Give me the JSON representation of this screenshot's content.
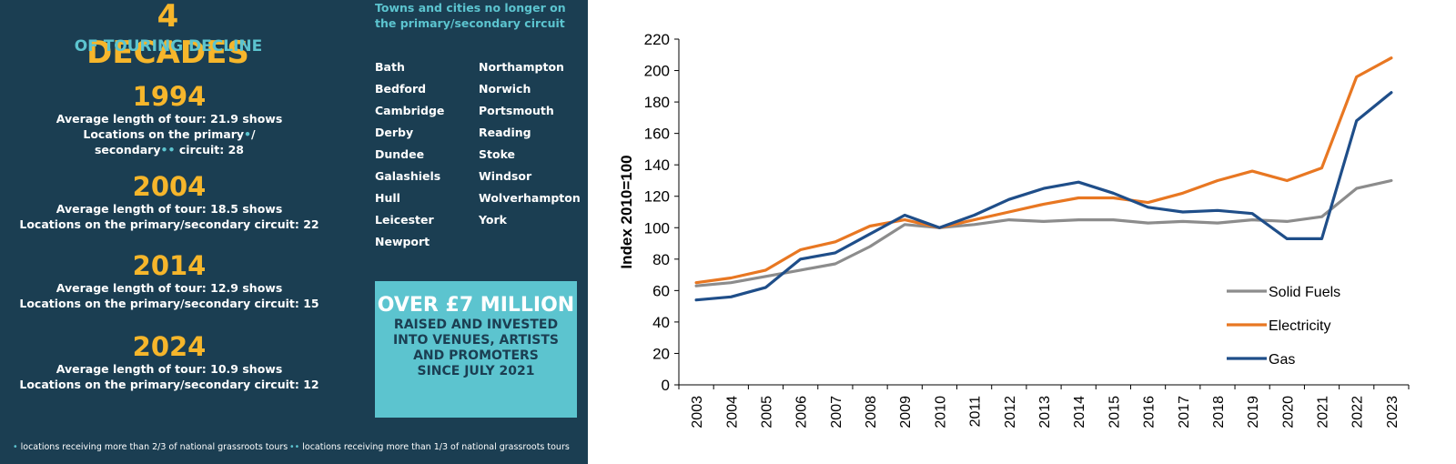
{
  "infographic": {
    "title": "4 DECADES",
    "subtitle": "OF TOURING DECLINE",
    "years": [
      {
        "year": "1994",
        "lines": [
          "Average length of tour: 21.9 shows"
        ],
        "locations_prefix": "Locations on the primary",
        "locations_mid": "/",
        "locations_suffix": "secondary",
        "locations_end": " circuit: 28",
        "dot_single": "•",
        "dot_double": "••"
      },
      {
        "year": "2004",
        "lines": [
          "Average length of tour: 18.5 shows",
          "Locations on the primary/secondary circuit: 22"
        ]
      },
      {
        "year": "2014",
        "lines": [
          "Average length of tour: 12.9 shows",
          "Locations on the primary/secondary circuit: 15"
        ]
      },
      {
        "year": "2024",
        "lines": [
          "Average length of tour: 10.9 shows",
          "Locations on the primary/secondary circuit: 12"
        ]
      }
    ],
    "towns_heading": "Towns and cities no longer on the primary/secondary circuit",
    "towns_col_a": [
      "Bath",
      "Bedford",
      "Cambridge",
      "Derby",
      "Dundee",
      "Galashiels",
      "Hull",
      "Leicester",
      "Newport"
    ],
    "towns_col_b": [
      "Northampton",
      "Norwich",
      "Portsmouth",
      "Reading",
      "Stoke",
      "Windsor",
      "Wolverhampton",
      "York"
    ],
    "promo": {
      "headline": "OVER £7 MILLION",
      "lines": [
        "RAISED AND INVESTED",
        "INTO VENUES, ARTISTS",
        "AND PROMOTERS",
        "SINCE JULY 2021"
      ]
    },
    "footnotes": [
      {
        "marker": "•",
        "text": " locations receiving more than 2/3 of national grassroots tours"
      },
      {
        "marker": "••",
        "text": " locations receiving more than 1/3 of national grassroots tours"
      }
    ],
    "colors": {
      "background": "#1b3e52",
      "accent_yellow": "#f6b62b",
      "accent_teal": "#5cc4cf"
    }
  },
  "chart_data": {
    "type": "line",
    "title": "",
    "xlabel": "",
    "ylabel": "Index 2010=100",
    "x": [
      "2003",
      "2004",
      "2005",
      "2006",
      "2007",
      "2008",
      "2009",
      "2010",
      "2011",
      "2012",
      "2013",
      "2014",
      "2015",
      "2016",
      "2017",
      "2018",
      "2019",
      "2020",
      "2021",
      "2022",
      "2023"
    ],
    "ylim": [
      0,
      220
    ],
    "yticks": [
      0,
      20,
      40,
      60,
      80,
      100,
      120,
      140,
      160,
      180,
      200,
      220
    ],
    "grid": false,
    "legend_position": "bottom-right",
    "series": [
      {
        "name": "Solid Fuels",
        "color": "#8c8c8c",
        "values": [
          63,
          65,
          69,
          73,
          77,
          88,
          102,
          100,
          102,
          105,
          104,
          105,
          105,
          103,
          104,
          103,
          105,
          104,
          107,
          125,
          130
        ]
      },
      {
        "name": "Electricity",
        "color": "#e87722",
        "values": [
          65,
          68,
          73,
          86,
          91,
          101,
          105,
          100,
          105,
          110,
          115,
          119,
          119,
          116,
          122,
          130,
          136,
          130,
          138,
          196,
          208
        ]
      },
      {
        "name": "Gas",
        "color": "#1f4e89",
        "values": [
          54,
          56,
          62,
          80,
          84,
          96,
          108,
          100,
          108,
          118,
          125,
          129,
          122,
          113,
          110,
          111,
          109,
          93,
          93,
          168,
          186
        ]
      }
    ]
  }
}
